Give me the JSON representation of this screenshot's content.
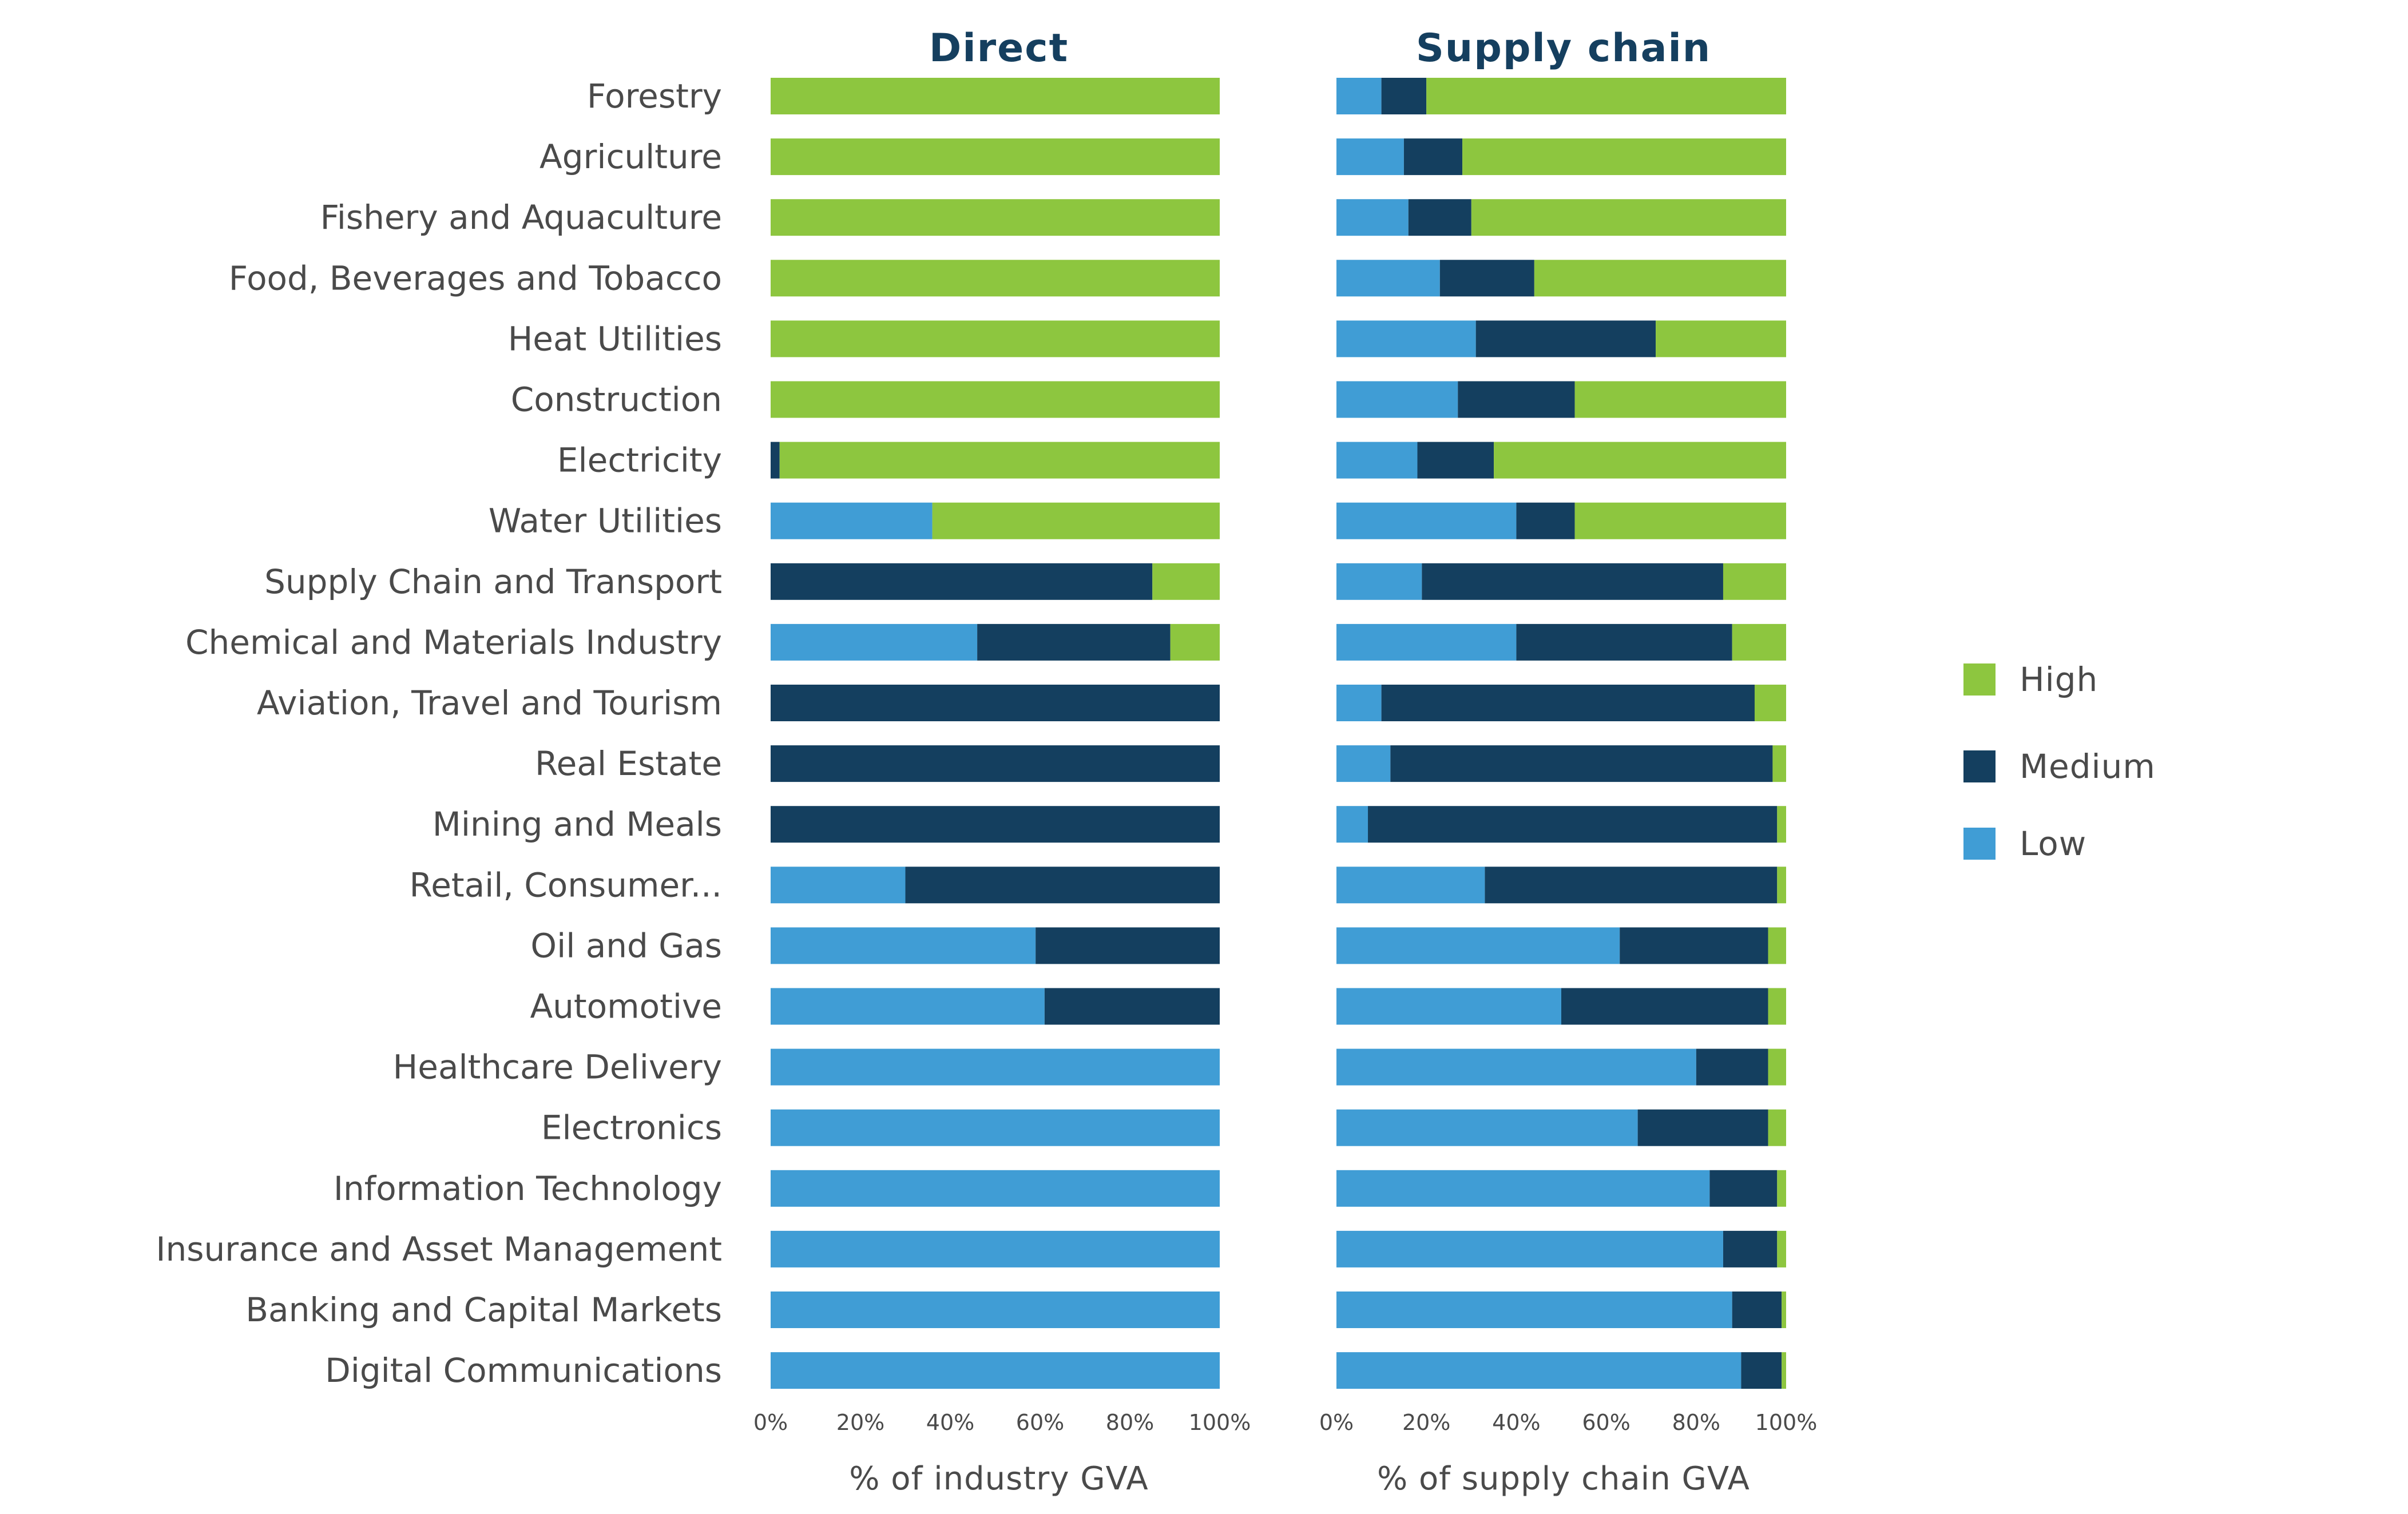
{
  "chart_data": {
    "type": "bar",
    "orientation": "horizontal",
    "stacked": true,
    "categories": [
      "Forestry",
      "Agriculture",
      "Fishery and Aquaculture",
      "Food, Beverages and Tobacco",
      "Heat Utilities",
      "Construction",
      "Electricity",
      "Water Utilities",
      "Supply Chain and Transport",
      "Chemical and Materials Industry",
      "Aviation, Travel and Tourism",
      "Real Estate",
      "Mining and Meals",
      "Retail, Consumer...",
      "Oil and Gas",
      "Automotive",
      "Healthcare Delivery",
      "Electronics",
      "Information Technology",
      "Insurance and Asset Management",
      "Banking and Capital Markets",
      "Digital Communications"
    ],
    "legend": [
      {
        "name": "High",
        "color": "#8dc63f"
      },
      {
        "name": "Medium",
        "color": "#143f5f"
      },
      {
        "name": "Low",
        "color": "#409dd5"
      }
    ],
    "legend_position": "right",
    "panels": [
      {
        "title": "Direct",
        "xlabel": "% of industry GVA",
        "xlim": [
          0,
          100
        ],
        "ticks": [
          "0%",
          "20%",
          "40%",
          "60%",
          "80%",
          "100%"
        ],
        "series": [
          {
            "name": "Low",
            "values": [
              0,
              0,
              0,
              0,
              0,
              0,
              0,
              36,
              0,
              46,
              0,
              0,
              0,
              30,
              59,
              61,
              100,
              100,
              100,
              100,
              100,
              100
            ]
          },
          {
            "name": "Medium",
            "values": [
              0,
              0,
              0,
              0,
              0,
              0,
              2,
              0,
              85,
              43,
              100,
              100,
              100,
              70,
              41,
              39,
              0,
              0,
              0,
              0,
              0,
              0
            ]
          },
          {
            "name": "High",
            "values": [
              100,
              100,
              100,
              100,
              100,
              100,
              98,
              64,
              15,
              11,
              0,
              0,
              0,
              0,
              0,
              0,
              0,
              0,
              0,
              0,
              0,
              0
            ]
          }
        ]
      },
      {
        "title": "Supply chain",
        "xlabel": "% of supply chain GVA",
        "xlim": [
          0,
          100
        ],
        "ticks": [
          "0%",
          "20%",
          "40%",
          "60%",
          "80%",
          "100%"
        ],
        "series": [
          {
            "name": "Low",
            "values": [
              10,
              15,
              16,
              23,
              31,
              27,
              18,
              40,
              19,
              40,
              10,
              12,
              7,
              33,
              63,
              50,
              80,
              67,
              83,
              86,
              88,
              90
            ]
          },
          {
            "name": "Medium",
            "values": [
              10,
              13,
              14,
              21,
              40,
              26,
              17,
              13,
              67,
              48,
              83,
              85,
              91,
              65,
              33,
              46,
              16,
              29,
              15,
              12,
              11,
              9
            ]
          },
          {
            "name": "High",
            "values": [
              80,
              72,
              70,
              56,
              29,
              47,
              65,
              47,
              14,
              12,
              7,
              3,
              2,
              2,
              4,
              4,
              4,
              4,
              2,
              2,
              1,
              1
            ]
          }
        ]
      }
    ]
  }
}
